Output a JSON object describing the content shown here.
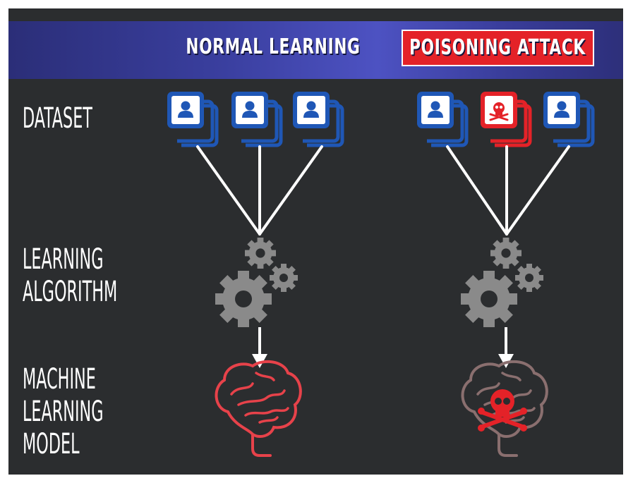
{
  "header": {
    "normal_title": "NORMAL LEARNING",
    "poison_title": "POISONING ATTACK"
  },
  "row_labels": {
    "dataset": "DATASET",
    "algorithm": "LEARNING\nALGORITHM",
    "model": "MACHINE\nLEARNING\nMODEL"
  },
  "colors": {
    "background": "#2b2d2f",
    "banner": "#3a3f9f",
    "data_blue": "#1f57b6",
    "poison_red": "#e42228",
    "gear_gray": "#8a8a8a",
    "arrow_white": "#ffffff"
  },
  "icons": {
    "clean_data": "person-card-icon",
    "poisoned_data": "skull-card-icon",
    "algorithm": "gears-icon",
    "clean_model": "brain-icon",
    "poisoned_model": "poisoned-brain-icon"
  }
}
